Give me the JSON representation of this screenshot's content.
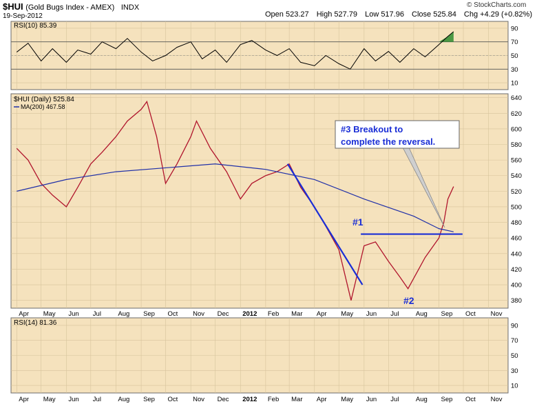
{
  "header": {
    "symbol": "$HUI",
    "name": "(Gold Bugs Index - AMEX)",
    "exchange": "INDX",
    "date": "19-Sep-2012",
    "open": "Open 523.27",
    "high": "High 527.79",
    "low": "Low 517.96",
    "close": "Close 525.84",
    "change": "Chg +4.29 (+0.82%)",
    "credit": "© StockCharts.com"
  },
  "chart_data": [
    {
      "type": "line",
      "panel": "rsi-top",
      "legend": "RSI(10) 85.39",
      "yticks": [
        10,
        30,
        50,
        70,
        90
      ],
      "ylim": [
        0,
        100
      ],
      "levels": [
        30,
        70
      ],
      "fill": "green",
      "x": [
        "2011-04-01",
        "2011-04-15",
        "2011-05-01",
        "2011-05-15",
        "2011-06-01",
        "2011-06-15",
        "2011-07-01",
        "2011-07-15",
        "2011-08-01",
        "2011-08-15",
        "2011-09-01",
        "2011-09-15",
        "2011-10-01",
        "2011-10-15",
        "2011-11-01",
        "2011-11-15",
        "2011-12-01",
        "2011-12-15",
        "2012-01-01",
        "2012-01-15",
        "2012-02-01",
        "2012-02-15",
        "2012-03-01",
        "2012-03-15",
        "2012-04-01",
        "2012-04-15",
        "2012-05-01",
        "2012-05-15",
        "2012-06-01",
        "2012-06-15",
        "2012-07-01",
        "2012-07-15",
        "2012-08-01",
        "2012-08-15",
        "2012-09-01",
        "2012-09-12",
        "2012-09-19"
      ],
      "values": [
        55,
        68,
        42,
        60,
        40,
        58,
        52,
        70,
        60,
        75,
        55,
        42,
        50,
        62,
        70,
        45,
        58,
        40,
        66,
        72,
        58,
        50,
        60,
        40,
        35,
        50,
        38,
        30,
        60,
        42,
        56,
        40,
        60,
        48,
        66,
        78,
        85
      ]
    },
    {
      "type": "line",
      "panel": "price",
      "legend": "$HUI (Daily) 525.84",
      "ma_legend": "MA(200) 467.58",
      "yticks": [
        380,
        400,
        420,
        440,
        460,
        480,
        500,
        520,
        540,
        560,
        580,
        600,
        620,
        640
      ],
      "ylim": [
        370,
        645
      ],
      "xticks": [
        "Apr",
        "May",
        "Jun",
        "Jul",
        "Aug",
        "Sep",
        "Oct",
        "Nov",
        "Dec",
        "2012",
        "Feb",
        "Mar",
        "Apr",
        "May",
        "Jun",
        "Jul",
        "Aug",
        "Sep",
        "Oct",
        "Nov"
      ],
      "series": [
        {
          "x": [
            "2011-04-01",
            "2011-04-15",
            "2011-05-01",
            "2011-05-15",
            "2011-06-01",
            "2011-06-15",
            "2011-07-01",
            "2011-07-15",
            "2011-08-01",
            "2011-08-15",
            "2011-09-01",
            "2011-09-08",
            "2011-09-20",
            "2011-10-01",
            "2011-10-15",
            "2011-11-01",
            "2011-11-08",
            "2011-11-25",
            "2011-12-15",
            "2012-01-01",
            "2012-01-15",
            "2012-02-01",
            "2012-02-15",
            "2012-03-01",
            "2012-03-15",
            "2012-04-01",
            "2012-04-15",
            "2012-05-01",
            "2012-05-16",
            "2012-06-01",
            "2012-06-15",
            "2012-07-01",
            "2012-07-15",
            "2012-07-25",
            "2012-08-15",
            "2012-09-01",
            "2012-09-07",
            "2012-09-12",
            "2012-09-19"
          ],
          "values": [
            575,
            560,
            530,
            515,
            500,
            525,
            555,
            570,
            590,
            610,
            625,
            635,
            590,
            530,
            555,
            590,
            610,
            575,
            545,
            510,
            530,
            540,
            545,
            555,
            525,
            500,
            475,
            445,
            380,
            450,
            455,
            430,
            410,
            395,
            435,
            460,
            480,
            510,
            526
          ]
        },
        {
          "x": [
            "2011-04-01",
            "2011-06-01",
            "2011-08-01",
            "2011-10-01",
            "2011-12-01",
            "2012-02-01",
            "2012-04-01",
            "2012-06-01",
            "2012-08-01",
            "2012-09-01",
            "2012-09-19"
          ],
          "values": [
            520,
            535,
            545,
            550,
            555,
            548,
            535,
            510,
            488,
            472,
            468
          ]
        }
      ],
      "annotations": [
        "#3 Breakout to",
        "complete the reversal.",
        "#1",
        "#2"
      ],
      "lines": [
        {
          "x": [
            "2012-02-28",
            "2012-05-30"
          ],
          "values": [
            555,
            400
          ]
        },
        {
          "x": [
            "2012-05-28",
            "2012-09-30"
          ],
          "values": [
            465,
            465
          ]
        }
      ]
    },
    {
      "type": "line",
      "panel": "rsi-bottom",
      "legend": "RSI(14) 81.36",
      "yticks": [
        10,
        30,
        50,
        70,
        90
      ],
      "ylim": [
        0,
        100
      ],
      "xticks": [
        "Apr",
        "May",
        "Jun",
        "Jul",
        "Aug",
        "Sep",
        "Oct",
        "Nov",
        "Dec",
        "2012",
        "Feb",
        "Mar",
        "Apr",
        "May",
        "Jun",
        "Jul",
        "Aug",
        "Sep",
        "Oct",
        "Nov"
      ],
      "values": []
    }
  ]
}
